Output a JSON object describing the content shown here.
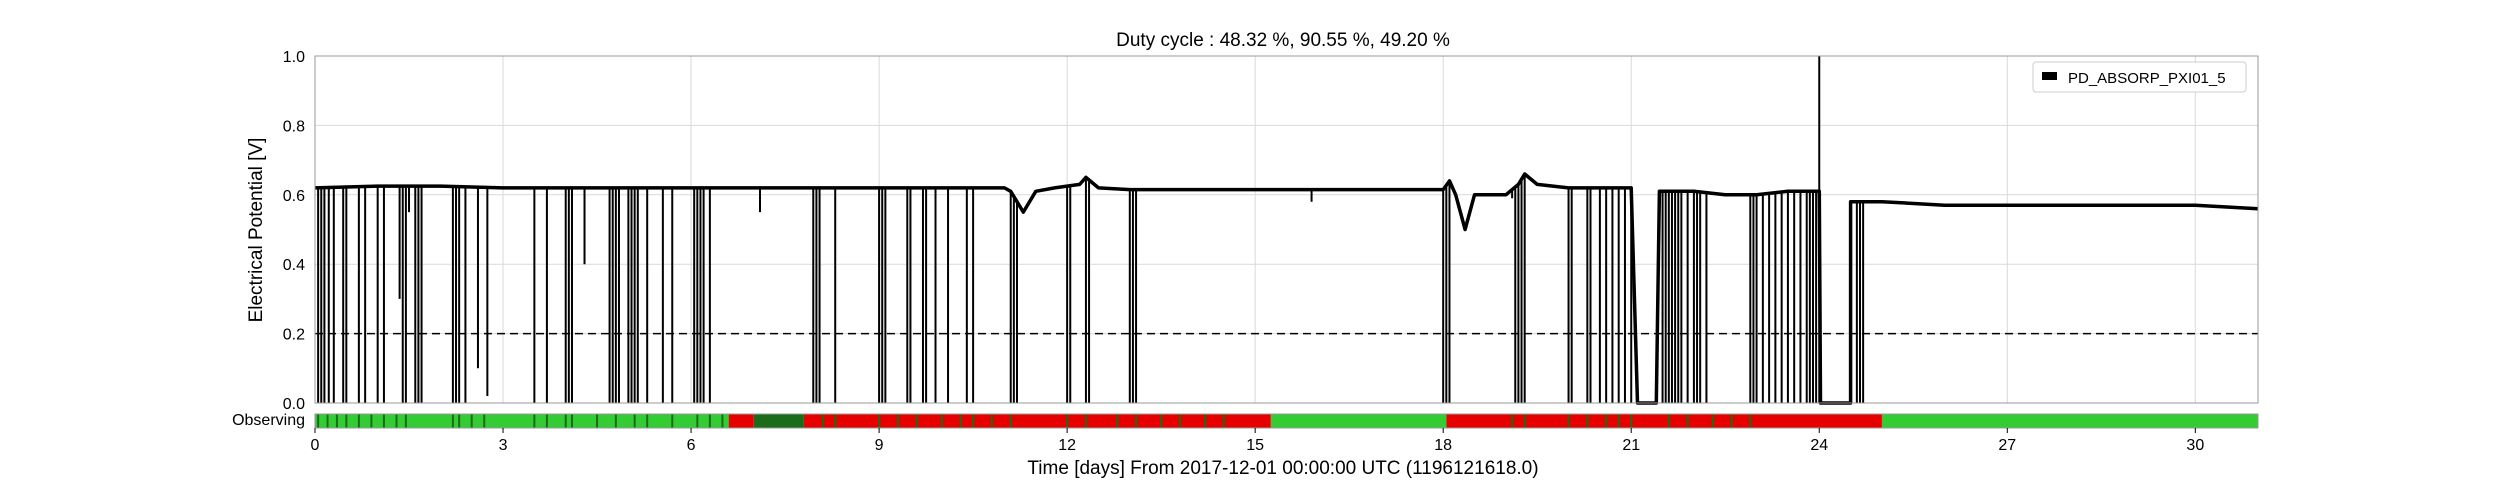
{
  "chart_data": {
    "type": "line",
    "title": "Duty cycle : 48.32 %, 90.55 %, 49.20 %",
    "ylabel": "Electrical Potential [V]",
    "xlabel": "Time [days] From 2017-12-01 00:00:00 UTC (1196121618.0)",
    "xlim": [
      0,
      31
    ],
    "ylim": [
      0,
      1.0
    ],
    "xticks": [
      0,
      3,
      6,
      9,
      12,
      15,
      18,
      21,
      24,
      27,
      30
    ],
    "yticks": [
      0.0,
      0.2,
      0.4,
      0.6,
      0.8,
      1.0
    ],
    "grid": true,
    "legend_position": "top-right",
    "threshold": 0.2,
    "series": [
      {
        "name": "PD_ABSORP_PXI01_5",
        "color": "#000000",
        "base": [
          [
            0,
            0.62
          ],
          [
            1,
            0.625
          ],
          [
            2,
            0.625
          ],
          [
            3,
            0.62
          ],
          [
            4,
            0.62
          ],
          [
            5,
            0.62
          ],
          [
            6,
            0.62
          ],
          [
            7,
            0.62
          ],
          [
            8,
            0.62
          ],
          [
            9,
            0.62
          ],
          [
            10,
            0.62
          ],
          [
            11,
            0.62
          ],
          [
            11.1,
            0.61
          ],
          [
            11.3,
            0.55
          ],
          [
            11.5,
            0.61
          ],
          [
            11.8,
            0.62
          ],
          [
            12.2,
            0.63
          ],
          [
            12.3,
            0.65
          ],
          [
            12.5,
            0.62
          ],
          [
            13,
            0.615
          ],
          [
            14,
            0.615
          ],
          [
            15,
            0.615
          ],
          [
            16,
            0.615
          ],
          [
            17,
            0.615
          ],
          [
            18,
            0.615
          ],
          [
            18.1,
            0.64
          ],
          [
            18.2,
            0.6
          ],
          [
            18.35,
            0.5
          ],
          [
            18.5,
            0.6
          ],
          [
            19,
            0.6
          ],
          [
            19.2,
            0.63
          ],
          [
            19.3,
            0.66
          ],
          [
            19.5,
            0.63
          ],
          [
            20,
            0.62
          ],
          [
            21,
            0.62
          ],
          [
            21.1,
            0.0
          ],
          [
            21.4,
            0.0
          ],
          [
            21.45,
            0.61
          ],
          [
            22,
            0.61
          ],
          [
            22.5,
            0.6
          ],
          [
            23,
            0.6
          ],
          [
            23.5,
            0.61
          ],
          [
            24,
            0.61
          ],
          [
            24.02,
            0.0
          ],
          [
            24.5,
            0.0
          ],
          [
            24.5,
            0.58
          ],
          [
            25,
            0.58
          ],
          [
            26,
            0.57
          ],
          [
            27,
            0.57
          ],
          [
            28,
            0.57
          ],
          [
            29,
            0.57
          ],
          [
            30,
            0.57
          ],
          [
            31,
            0.56
          ]
        ],
        "dropouts": [
          [
            0.05,
            0
          ],
          [
            0.1,
            0
          ],
          [
            0.15,
            0
          ],
          [
            0.22,
            0
          ],
          [
            0.3,
            0
          ],
          [
            0.45,
            0
          ],
          [
            0.5,
            0
          ],
          [
            0.7,
            0
          ],
          [
            0.8,
            0
          ],
          [
            1.0,
            0
          ],
          [
            1.1,
            0
          ],
          [
            1.35,
            0.3
          ],
          [
            1.4,
            0
          ],
          [
            1.45,
            0
          ],
          [
            1.5,
            0.55
          ],
          [
            1.6,
            0
          ],
          [
            1.65,
            0
          ],
          [
            1.7,
            0
          ],
          [
            2.2,
            0
          ],
          [
            2.25,
            0
          ],
          [
            2.3,
            0
          ],
          [
            2.4,
            0
          ],
          [
            2.6,
            0.1
          ],
          [
            2.75,
            0.02
          ],
          [
            3.5,
            0
          ],
          [
            3.7,
            0
          ],
          [
            4.0,
            0
          ],
          [
            4.05,
            0
          ],
          [
            4.1,
            0
          ],
          [
            4.3,
            0.4
          ],
          [
            4.7,
            0
          ],
          [
            4.75,
            0
          ],
          [
            4.8,
            0
          ],
          [
            4.85,
            0
          ],
          [
            5.0,
            0
          ],
          [
            5.05,
            0
          ],
          [
            5.1,
            0
          ],
          [
            5.15,
            0
          ],
          [
            5.3,
            0
          ],
          [
            5.55,
            0
          ],
          [
            5.7,
            0
          ],
          [
            6.05,
            0
          ],
          [
            6.1,
            0
          ],
          [
            6.15,
            0
          ],
          [
            6.2,
            0
          ],
          [
            6.3,
            0
          ],
          [
            7.1,
            0.55
          ],
          [
            7.95,
            0
          ],
          [
            8.0,
            0
          ],
          [
            8.05,
            0
          ],
          [
            8.3,
            0
          ],
          [
            9.0,
            0
          ],
          [
            9.05,
            0
          ],
          [
            9.1,
            0
          ],
          [
            9.45,
            0
          ],
          [
            9.5,
            0
          ],
          [
            9.7,
            0
          ],
          [
            9.75,
            0
          ],
          [
            9.9,
            0
          ],
          [
            10.1,
            0
          ],
          [
            10.4,
            0
          ],
          [
            10.5,
            0
          ],
          [
            11.1,
            0
          ],
          [
            11.15,
            0
          ],
          [
            11.2,
            0
          ],
          [
            12.0,
            0
          ],
          [
            12.05,
            0
          ],
          [
            12.3,
            0
          ],
          [
            12.35,
            0
          ],
          [
            13.0,
            0
          ],
          [
            13.05,
            0
          ],
          [
            13.1,
            0
          ],
          [
            15.9,
            0.58
          ],
          [
            18.0,
            0
          ],
          [
            18.05,
            0
          ],
          [
            18.1,
            0
          ],
          [
            19.1,
            0.59
          ],
          [
            19.15,
            0
          ],
          [
            19.2,
            0
          ],
          [
            19.25,
            0
          ],
          [
            19.3,
            0
          ],
          [
            20.0,
            0
          ],
          [
            20.05,
            0
          ],
          [
            20.3,
            0
          ],
          [
            20.35,
            0
          ],
          [
            20.5,
            0
          ],
          [
            20.6,
            0
          ],
          [
            20.7,
            0
          ],
          [
            20.8,
            0
          ],
          [
            20.9,
            0
          ],
          [
            21.0,
            0
          ],
          [
            21.05,
            0.3
          ],
          [
            21.5,
            0
          ],
          [
            21.55,
            0
          ],
          [
            21.6,
            0
          ],
          [
            21.65,
            0
          ],
          [
            21.7,
            0
          ],
          [
            21.75,
            0
          ],
          [
            21.8,
            0
          ],
          [
            21.9,
            0
          ],
          [
            22.0,
            0
          ],
          [
            22.05,
            0
          ],
          [
            22.1,
            0
          ],
          [
            22.2,
            0
          ],
          [
            22.9,
            0
          ],
          [
            22.95,
            0
          ],
          [
            23.0,
            0
          ],
          [
            23.1,
            0
          ],
          [
            23.2,
            0
          ],
          [
            23.3,
            0
          ],
          [
            23.4,
            0
          ],
          [
            23.5,
            0
          ],
          [
            23.6,
            0
          ],
          [
            23.7,
            0
          ],
          [
            23.8,
            0
          ],
          [
            23.85,
            0
          ],
          [
            23.9,
            0
          ],
          [
            23.95,
            0
          ],
          [
            24.0,
            0
          ],
          [
            24.0,
            1.0
          ],
          [
            24.6,
            0
          ],
          [
            24.65,
            0
          ],
          [
            24.7,
            0
          ]
        ]
      }
    ],
    "state_bar": {
      "label": "Observing",
      "colors": {
        "active": "#33cc33",
        "inactive": "#e60000",
        "flag": "#1a6b1a"
      },
      "segments": [
        [
          0,
          6.6,
          "active"
        ],
        [
          6.6,
          7.0,
          "inactive"
        ],
        [
          7.0,
          7.8,
          "flag"
        ],
        [
          7.8,
          15.25,
          "inactive"
        ],
        [
          15.25,
          18.05,
          "active"
        ],
        [
          18.05,
          25.0,
          "inactive"
        ],
        [
          25.0,
          31,
          "active"
        ]
      ],
      "ticks": [
        0.05,
        0.2,
        0.35,
        0.5,
        0.7,
        0.9,
        1.1,
        1.3,
        1.45,
        2.2,
        2.3,
        2.5,
        2.7,
        3.5,
        3.7,
        4.0,
        4.1,
        4.5,
        4.8,
        5.1,
        5.3,
        5.7,
        6.1,
        6.3,
        6.5,
        8.1,
        8.3,
        9.0,
        9.3,
        9.6,
        10.0,
        10.3,
        10.5,
        10.8,
        11.1,
        12.0,
        12.3,
        12.8,
        13.1,
        13.5,
        13.8,
        14.2,
        14.5,
        19.1,
        19.3,
        20.0,
        20.3,
        20.6,
        20.8,
        21.0,
        21.6,
        21.9,
        22.3,
        22.6,
        22.9
      ]
    }
  }
}
